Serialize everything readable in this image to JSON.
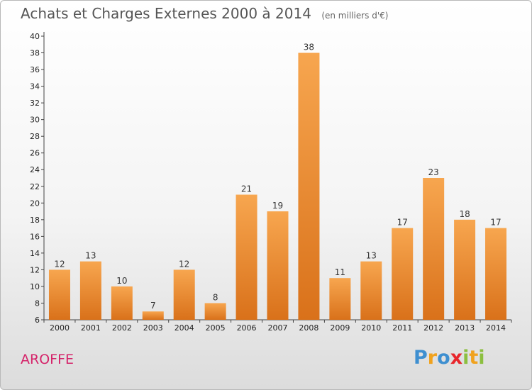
{
  "header": {
    "title": "Achats et Charges Externes 2000 à 2014",
    "unit": "(en milliers d'€)"
  },
  "footer": {
    "commune": "AROFFE",
    "logo": {
      "p": "P",
      "r": "r",
      "o": "o",
      "x": "x",
      "i1": "i",
      "t": "t",
      "i2": "i"
    }
  },
  "colors": {
    "bar_top": "#f7a64f",
    "bar_bottom": "#d9711a",
    "title": "#555555",
    "commune": "#d5246a"
  },
  "chart_data": {
    "type": "bar",
    "title": "Achats et Charges Externes 2000 à 2014",
    "subtitle": "(en milliers d'€)",
    "categories": [
      "2000",
      "2001",
      "2002",
      "2003",
      "2004",
      "2005",
      "2006",
      "2007",
      "2008",
      "2009",
      "2010",
      "2011",
      "2012",
      "2013",
      "2014"
    ],
    "values": [
      12,
      13,
      10,
      7,
      12,
      8,
      21,
      19,
      38,
      11,
      13,
      17,
      23,
      18,
      17
    ],
    "ylim": [
      6,
      40
    ],
    "yticks": [
      6,
      8,
      10,
      12,
      14,
      16,
      18,
      20,
      22,
      24,
      26,
      28,
      30,
      32,
      34,
      36,
      38,
      40
    ],
    "xlabel": "",
    "ylabel": "",
    "grid": false,
    "data_labels": true
  }
}
